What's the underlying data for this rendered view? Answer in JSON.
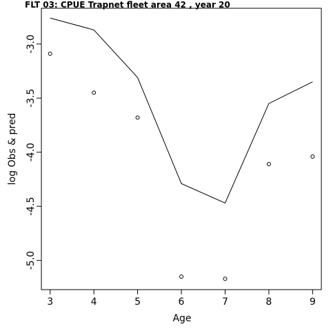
{
  "chart_data": {
    "type": "line",
    "title": "FLT 03:    CPUE       Trapnet   fleet        area        42             , year 20",
    "xlabel": "Age",
    "ylabel": "log Obs & pred",
    "xlim": [
      2.8,
      9.2
    ],
    "ylim": [
      -5.27,
      -2.67
    ],
    "x_ticks": [
      "3",
      "4",
      "5",
      "6",
      "7",
      "8",
      "9"
    ],
    "y_ticks": [
      "-3.0",
      "-3.5",
      "-4.0",
      "-4.5",
      "-5.0"
    ],
    "x": [
      3,
      4,
      5,
      6,
      7,
      8,
      9
    ],
    "series": [
      {
        "style": "line",
        "values": [
          -2.76,
          -2.87,
          -3.31,
          -4.29,
          -4.47,
          -3.55,
          -3.35
        ]
      },
      {
        "style": "points",
        "values": [
          -3.09,
          -3.45,
          -3.68,
          -5.15,
          -5.17,
          -4.11,
          -4.04
        ]
      }
    ],
    "grid": false,
    "colors": {
      "line": "#000000",
      "points": "#000000",
      "background": "#ffffff"
    }
  }
}
